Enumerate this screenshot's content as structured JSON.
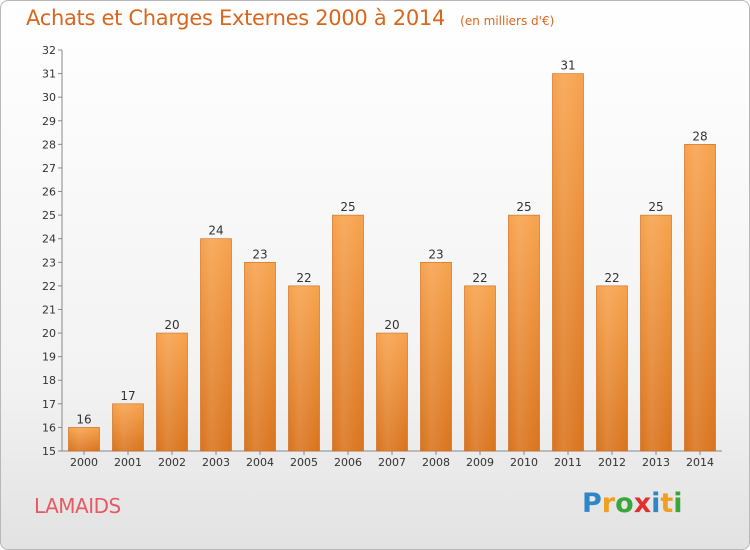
{
  "header": {
    "title": "Achats et Charges Externes 2000 à 2014",
    "subtitle": "(en milliers d'€)"
  },
  "footer": {
    "commune": "LAMAIDS",
    "logo_letters": [
      "P",
      "r",
      "o",
      "x",
      "i",
      "t",
      "i"
    ],
    "logo_colors": [
      "#2e86c8",
      "#f0a020",
      "#3aa63a",
      "#e03030",
      "#2e86c8",
      "#f0a020",
      "#3aa63a"
    ]
  },
  "chart_data": {
    "type": "bar",
    "categories": [
      "2000",
      "2001",
      "2002",
      "2003",
      "2004",
      "2005",
      "2006",
      "2007",
      "2008",
      "2009",
      "2010",
      "2011",
      "2012",
      "2013",
      "2014"
    ],
    "values": [
      16,
      17,
      20,
      24,
      23,
      22,
      25,
      20,
      23,
      22,
      25,
      31,
      22,
      25,
      28
    ],
    "title": "Achats et Charges Externes 2000 à 2014",
    "subtitle": "(en milliers d'€)",
    "xlabel": "",
    "ylabel": "",
    "ylim": [
      15,
      32
    ],
    "yticks": [
      15,
      16,
      17,
      18,
      19,
      20,
      21,
      22,
      23,
      24,
      25,
      26,
      27,
      28,
      29,
      30,
      31,
      32
    ],
    "grid": false,
    "data_labels": true,
    "bar_color": "#f0913a"
  }
}
